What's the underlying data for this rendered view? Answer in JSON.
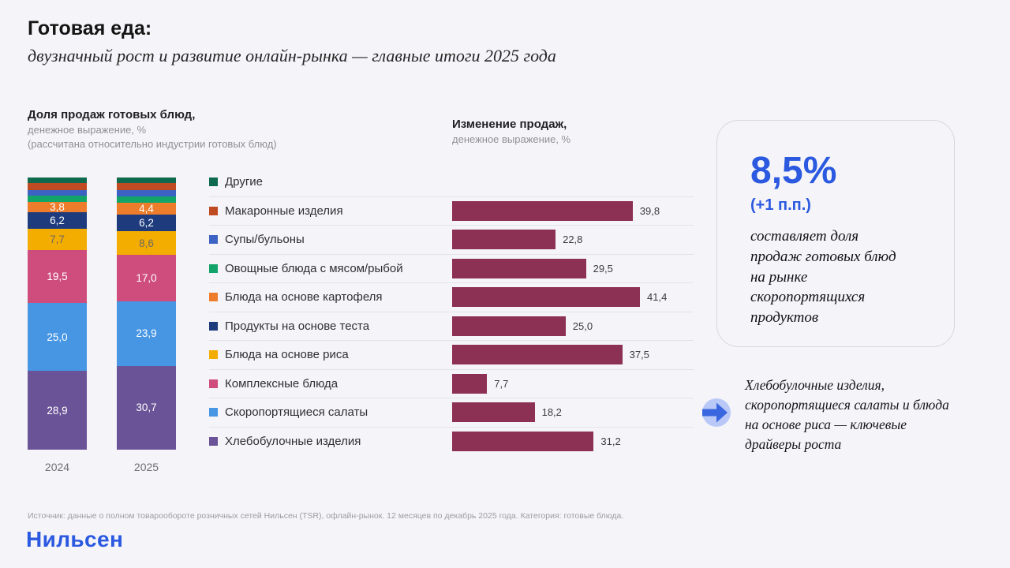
{
  "page": {
    "title": "Готовая еда:",
    "subtitle": "двузначный рост и развитие онлайн-рынка — главные итоги 2025 года",
    "background": "#f5f5f9",
    "accent_color": "#2b59e0"
  },
  "chart_data": [
    {
      "type": "bar",
      "variant": "stacked-columns",
      "title": "Доля продаж готовых блюд,",
      "subtitle": "денежное выражение, %",
      "note": "(рассчитана относительно индустрии готовых блюд)",
      "categories": [
        "2024",
        "2025"
      ],
      "ylim": [
        0,
        100
      ],
      "legend_position": "none",
      "unlabeled_segments_estimated": true,
      "series": [
        {
          "name": "Другие",
          "color": "#0f6a4d",
          "values": [
            2.1,
            2.1
          ],
          "labels": [
            "",
            ""
          ]
        },
        {
          "name": "Макаронные изделия",
          "color": "#c04a21",
          "values": [
            2.4,
            2.5
          ],
          "labels": [
            "",
            ""
          ]
        },
        {
          "name": "Супы/бульоны",
          "color": "#3c63c3",
          "values": [
            2.2,
            2.3
          ],
          "labels": [
            "",
            ""
          ]
        },
        {
          "name": "Овощные блюда с мясом/рыбой",
          "color": "#12a468",
          "values": [
            2.2,
            2.3
          ],
          "labels": [
            "",
            ""
          ]
        },
        {
          "name": "Блюда на основе картофеля",
          "color": "#ed7d2b",
          "values": [
            3.8,
            4.4
          ],
          "labels": [
            "3,8",
            "4,4"
          ],
          "label_color": "#ffffff"
        },
        {
          "name": "Продукты на основе теста",
          "color": "#1e3b7d",
          "values": [
            6.2,
            6.2
          ],
          "labels": [
            "6,2",
            "6,2"
          ],
          "label_color": "#ffffff"
        },
        {
          "name": "Блюда на основе риса",
          "color": "#f3ac00",
          "values": [
            7.7,
            8.6
          ],
          "labels": [
            "7,7",
            "8,6"
          ],
          "label_color": "#6e6a62"
        },
        {
          "name": "Комплексные блюда",
          "color": "#cf4d7c",
          "values": [
            19.5,
            17.0
          ],
          "labels": [
            "19,5",
            "17,0"
          ],
          "label_color": "#ffffff"
        },
        {
          "name": "Скоропортящиеся салаты",
          "color": "#4696e3",
          "values": [
            25.0,
            23.9
          ],
          "labels": [
            "25,0",
            "23,9"
          ],
          "label_color": "#ffffff"
        },
        {
          "name": "Хлебобулочные изделия",
          "color": "#6a5497",
          "values": [
            28.9,
            30.7
          ],
          "labels": [
            "28,9",
            "30,7"
          ],
          "label_color": "#ffffff"
        }
      ]
    },
    {
      "type": "bar",
      "variant": "horizontal",
      "title": "Изменение продаж,",
      "subtitle": "денежное выражение, %",
      "bar_color": "#8c3054",
      "xmax": 41.4,
      "categories": [
        "Другие",
        "Макаронные изделия",
        "Супы/бульоны",
        "Овощные блюда с мясом/рыбой",
        "Блюда на основе картофеля",
        "Продукты на основе теста",
        "Блюда на основе риса",
        "Комплексные блюда",
        "Скоропортящиеся салаты",
        "Хлебобулочные изделия"
      ],
      "marker_colors": [
        "#0f6a4d",
        "#c04a21",
        "#3c63c3",
        "#12a468",
        "#ed7d2b",
        "#1e3b7d",
        "#f3ac00",
        "#cf4d7c",
        "#4696e3",
        "#6a5497"
      ],
      "values": [
        null,
        39.8,
        22.8,
        29.5,
        41.4,
        25.0,
        37.5,
        7.7,
        18.2,
        31.2
      ],
      "value_labels": [
        "",
        "39,8",
        "22,8",
        "29,5",
        "41,4",
        "25,0",
        "37,5",
        "7,7",
        "18,2",
        "31,2"
      ]
    }
  ],
  "highlight_card": {
    "value": "8,5%",
    "delta": "(+1 п.п.)",
    "description": "составляет доля продаж готовых блюд на рынке скоропортящихся продуктов"
  },
  "callout": {
    "icon": "arrow-right-icon",
    "icon_circle_color": "#b9c8f6",
    "icon_arrow_color": "#3a67e0",
    "text": "Хлебобулочные изделия, скоропортящиеся салаты и блюда на основе риса — ключевые драйверы роста"
  },
  "footer": {
    "source": "Источник: данные о полном товарообороте розничных сетей Нильсен (TSR), офлайн-рынок. 12 месяцев по декабрь 2025 года. Категория: готовые блюда.",
    "logo": "Нильсен"
  }
}
